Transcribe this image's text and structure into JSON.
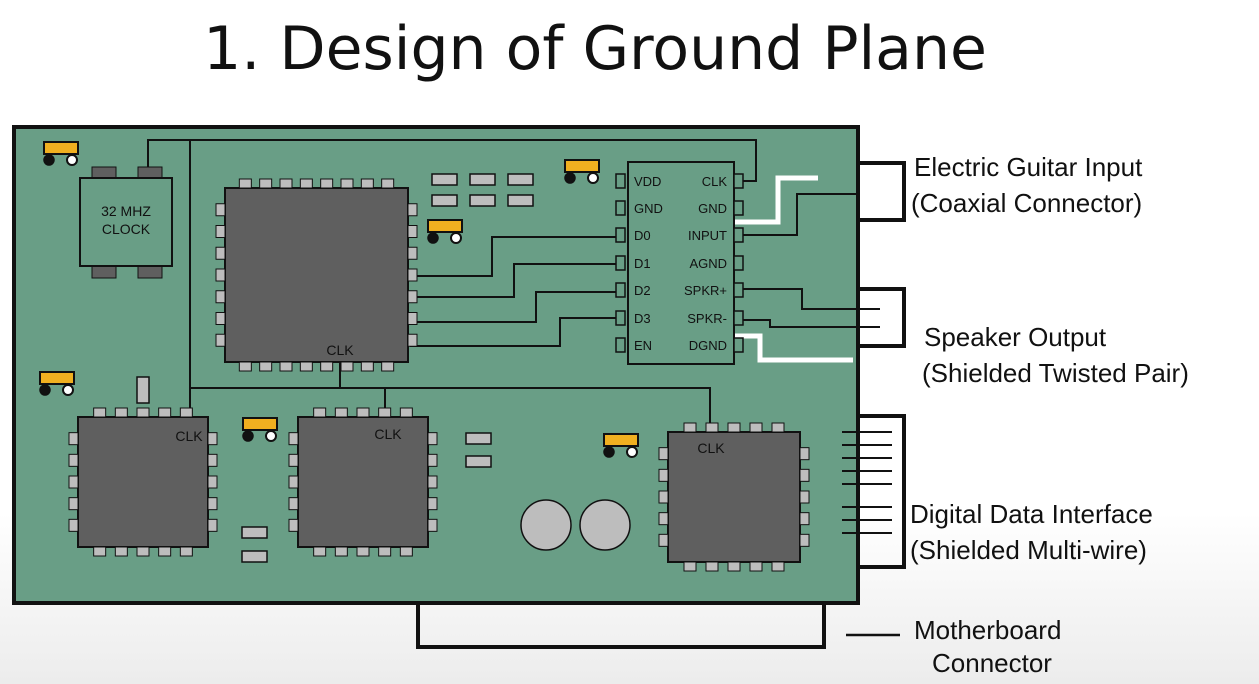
{
  "title": "1. Design of Ground Plane",
  "board": {
    "clock_label_line1": "32 MHZ",
    "clock_label_line2": "CLOCK",
    "main_chip_label": "CLK",
    "chip_a_label": "CLK",
    "chip_b_label": "CLK",
    "chip_c_label": "CLK"
  },
  "codec_pins": {
    "left": [
      "VDD",
      "GND",
      "D0",
      "D1",
      "D2",
      "D3",
      "EN"
    ],
    "right": [
      "CLK",
      "GND",
      "INPUT",
      "AGND",
      "SPKR+",
      "SPKR-",
      "DGND"
    ]
  },
  "callouts": {
    "guitar_line1": "Electric Guitar Input",
    "guitar_line2": "(Coaxial Connector)",
    "speaker_line1": "Speaker Output",
    "speaker_line2": "(Shielded Twisted Pair)",
    "digital_line1": "Digital Data Interface",
    "digital_line2": "(Shielded Multi-wire)",
    "motherboard_line1": "Motherboard",
    "motherboard_line2": "Connector"
  },
  "colors": {
    "board": "#699e86",
    "chip": "#5f5f5f",
    "pad": "#bdbdbd",
    "trace": "#111111",
    "isolation": "#ffffff",
    "capacitor": "#f0b020"
  }
}
